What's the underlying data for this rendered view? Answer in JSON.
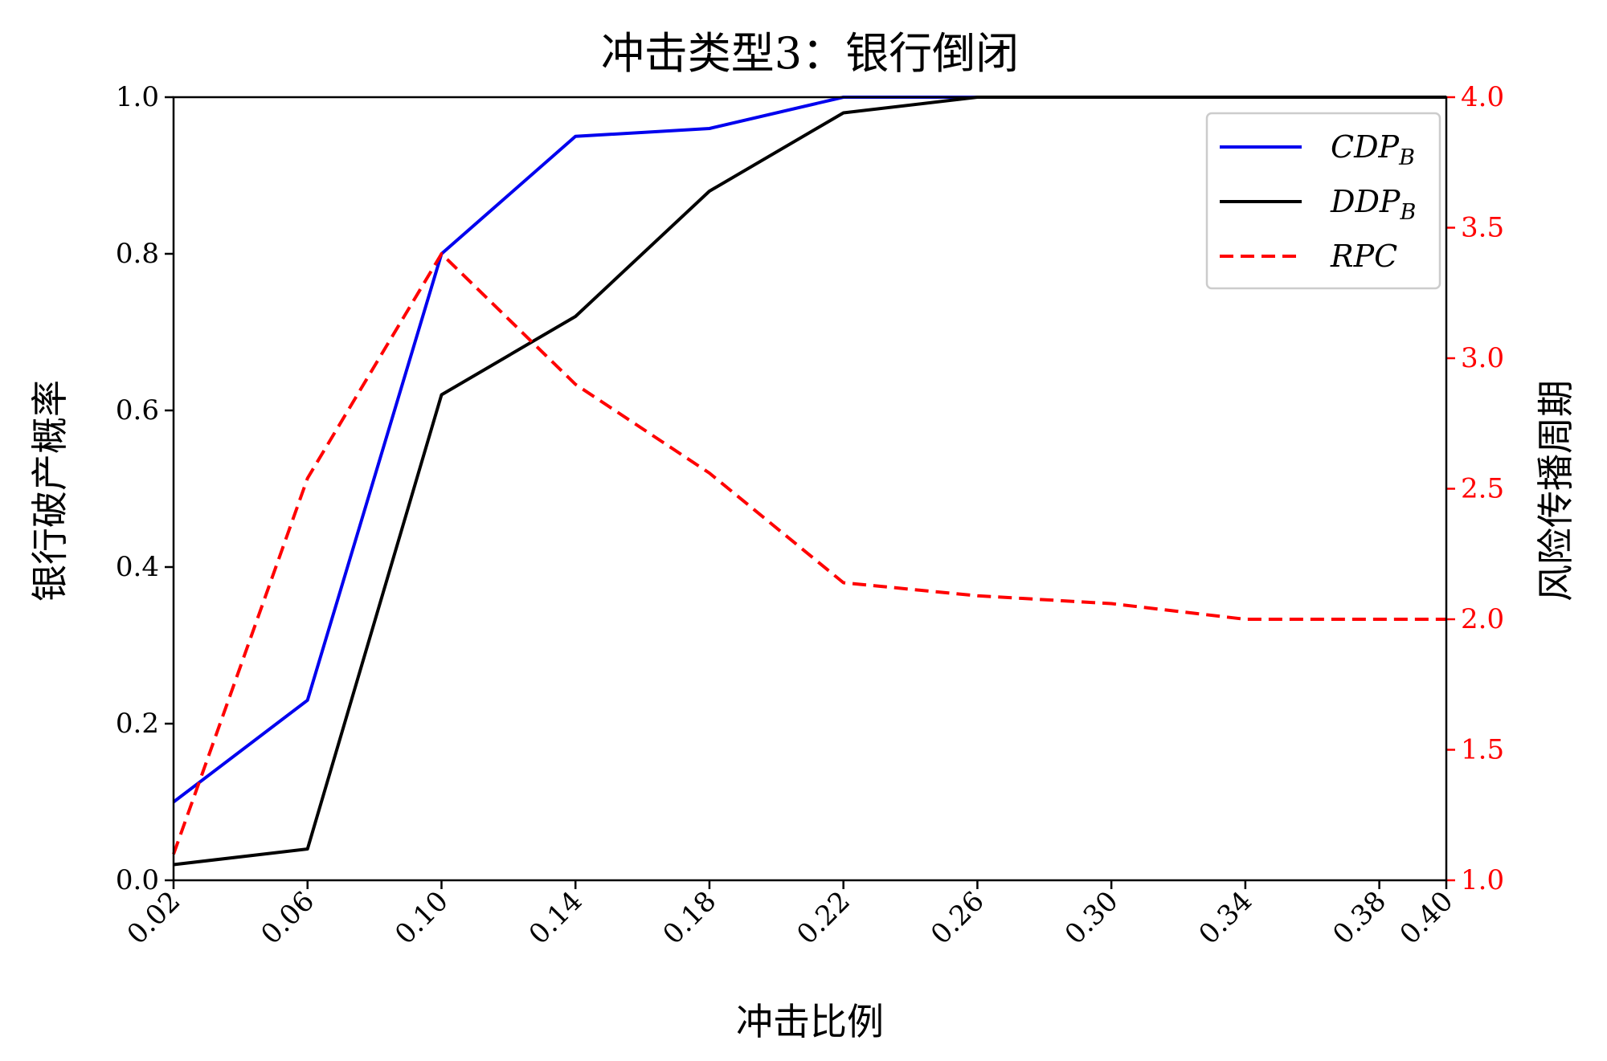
{
  "chart_data": {
    "type": "line",
    "title": "冲击类型3：银行倒闭",
    "xlabel": "冲击比例",
    "ylabel": "银行破产概率",
    "y2label": "风险传播周期",
    "x": [
      0.02,
      0.06,
      0.1,
      0.14,
      0.18,
      0.22,
      0.26,
      0.3,
      0.34,
      0.38,
      0.4
    ],
    "x_tick_labels": [
      "0.02",
      "0.06",
      "0.10",
      "0.14",
      "0.18",
      "0.22",
      "0.26",
      "0.30",
      "0.34",
      "0.38",
      "0.40"
    ],
    "xlim": [
      0.02,
      0.4
    ],
    "ylim": [
      0.0,
      1.0
    ],
    "y_ticks": [
      "0.0",
      "0.2",
      "0.4",
      "0.6",
      "0.8",
      "1.0"
    ],
    "y2lim": [
      1.0,
      4.0
    ],
    "y2_ticks": [
      "1.0",
      "1.5",
      "2.0",
      "2.5",
      "3.0",
      "3.5",
      "4.0"
    ],
    "legend_position": "top-right",
    "series": [
      {
        "name": "CDP",
        "subscript": "B",
        "axis": "left",
        "color": "#0000ee",
        "style": "solid",
        "values": [
          0.1,
          0.23,
          0.8,
          0.95,
          0.96,
          1.0,
          1.0,
          1.0,
          1.0,
          1.0,
          1.0
        ]
      },
      {
        "name": "DDP",
        "subscript": "B",
        "axis": "left",
        "color": "#000000",
        "style": "solid",
        "values": [
          0.02,
          0.04,
          0.62,
          0.72,
          0.88,
          0.98,
          1.0,
          1.0,
          1.0,
          1.0,
          1.0
        ]
      },
      {
        "name": "RPC",
        "subscript": "",
        "axis": "right",
        "color": "#ff0000",
        "style": "dashed",
        "values": [
          1.1,
          2.54,
          3.4,
          2.9,
          2.56,
          2.14,
          2.09,
          2.06,
          2.0,
          2.0,
          2.0
        ]
      }
    ]
  }
}
